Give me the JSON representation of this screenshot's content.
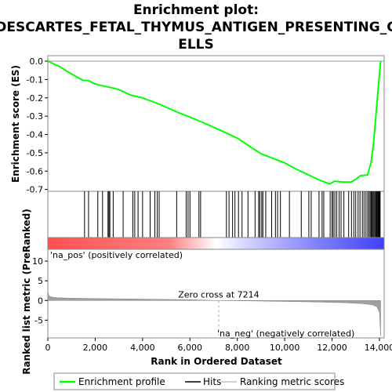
{
  "chart_data": {
    "type": "line",
    "title_lines": [
      "Enrichment plot:",
      "DESCARTES_FETAL_THYMUS_ANTIGEN_PRESENTING_C",
      "ELLS"
    ],
    "xlabel": "Rank in Ordered Dataset",
    "ylabel_top": "Enrichment score (ES)",
    "ylabel_bottom": "Ranked list metric (PreRanked)",
    "xlim": [
      0,
      14200
    ],
    "x_ticks": [
      0,
      2000,
      4000,
      6000,
      8000,
      10000,
      12000,
      14000
    ],
    "x_tick_labels": [
      "0",
      "2,000",
      "4,000",
      "6,000",
      "8,000",
      "10,000",
      "12,000",
      "14,000"
    ],
    "es_ylim": [
      -0.71,
      0.03
    ],
    "es_ticks": [
      0.0,
      -0.1,
      -0.2,
      -0.3,
      -0.4,
      -0.5,
      -0.6,
      -0.7
    ],
    "es_tick_labels": [
      "0.0",
      "-0.1",
      "-0.2",
      "-0.3",
      "-0.4",
      "-0.5",
      "-0.6",
      "-0.7"
    ],
    "metric_ylim": [
      -9.5,
      13
    ],
    "metric_ticks": [
      10,
      5,
      0,
      -5
    ],
    "metric_tick_labels": [
      "10",
      "5",
      "0",
      "-5"
    ],
    "enrichment_profile": {
      "x": [
        0,
        500,
        1000,
        1500,
        1700,
        2000,
        2500,
        2700,
        3000,
        3500,
        4000,
        4500,
        4800,
        5500,
        6000,
        7000,
        8000,
        9000,
        9500,
        10000,
        10500,
        11000,
        11500,
        11900,
        12100,
        12500,
        12800,
        13000,
        13200,
        13500,
        13650,
        13750,
        13850,
        13950,
        14050
      ],
      "y": [
        0.0,
        -0.03,
        -0.07,
        -0.105,
        -0.105,
        -0.125,
        -0.14,
        -0.145,
        -0.155,
        -0.185,
        -0.2,
        -0.225,
        -0.24,
        -0.28,
        -0.305,
        -0.36,
        -0.42,
        -0.505,
        -0.53,
        -0.555,
        -0.59,
        -0.62,
        -0.65,
        -0.67,
        -0.655,
        -0.66,
        -0.66,
        -0.645,
        -0.625,
        -0.62,
        -0.55,
        -0.45,
        -0.3,
        -0.15,
        0.0
      ]
    },
    "hits": [
      1550,
      1720,
      2110,
      2310,
      2540,
      2580,
      2620,
      2760,
      3180,
      3590,
      3670,
      3810,
      4000,
      4320,
      4520,
      4620,
      4700,
      5440,
      5840,
      5920,
      6000,
      6380,
      6450,
      7540,
      7650,
      7800,
      7900,
      8050,
      8200,
      8450,
      8750,
      8900,
      8950,
      9030,
      9080,
      9200,
      9450,
      9610,
      9700,
      9820,
      10200,
      10700,
      11020,
      11120,
      11450,
      11580,
      11650,
      11920,
      12000,
      12050,
      12120,
      12200,
      12300,
      12380,
      12500,
      12700,
      12820,
      12920,
      13000,
      13100,
      13180,
      13280,
      13350,
      13430,
      13500,
      13560,
      13610,
      13650,
      13690,
      13730,
      13770,
      13810,
      13850,
      13880,
      13910,
      13940,
      13970,
      14000,
      14030
    ],
    "zero_cross": 7214,
    "zero_cross_label": "Zero cross at 7214",
    "pos_label": "'na_pos' (positively correlated)",
    "neg_label": "'na_neg' (negatively correlated)",
    "ranking_metric": {
      "x": [
        0,
        50,
        150,
        400,
        1000,
        2000,
        4000,
        6000,
        7214,
        9000,
        11000,
        12500,
        13300,
        13700,
        13900,
        14000,
        14050
      ],
      "y": [
        2.2,
        1.2,
        0.9,
        0.7,
        0.6,
        0.5,
        0.35,
        0.2,
        0.0,
        -0.15,
        -0.35,
        -0.55,
        -0.8,
        -1.1,
        -1.6,
        -3.0,
        -9.0
      ]
    },
    "legend": [
      {
        "label": "Enrichment profile",
        "color": "#00ff00"
      },
      {
        "label": "Hits",
        "color": "#000000"
      },
      {
        "label": "Ranking metric scores",
        "color": "#c0c0c0"
      }
    ],
    "colors": {
      "profile": "#00ff00",
      "metric": "#808080",
      "pos": "#ff0000",
      "neg": "#0000ff",
      "neg_label": "#0000ff",
      "pos_label": "#ff0000"
    }
  }
}
